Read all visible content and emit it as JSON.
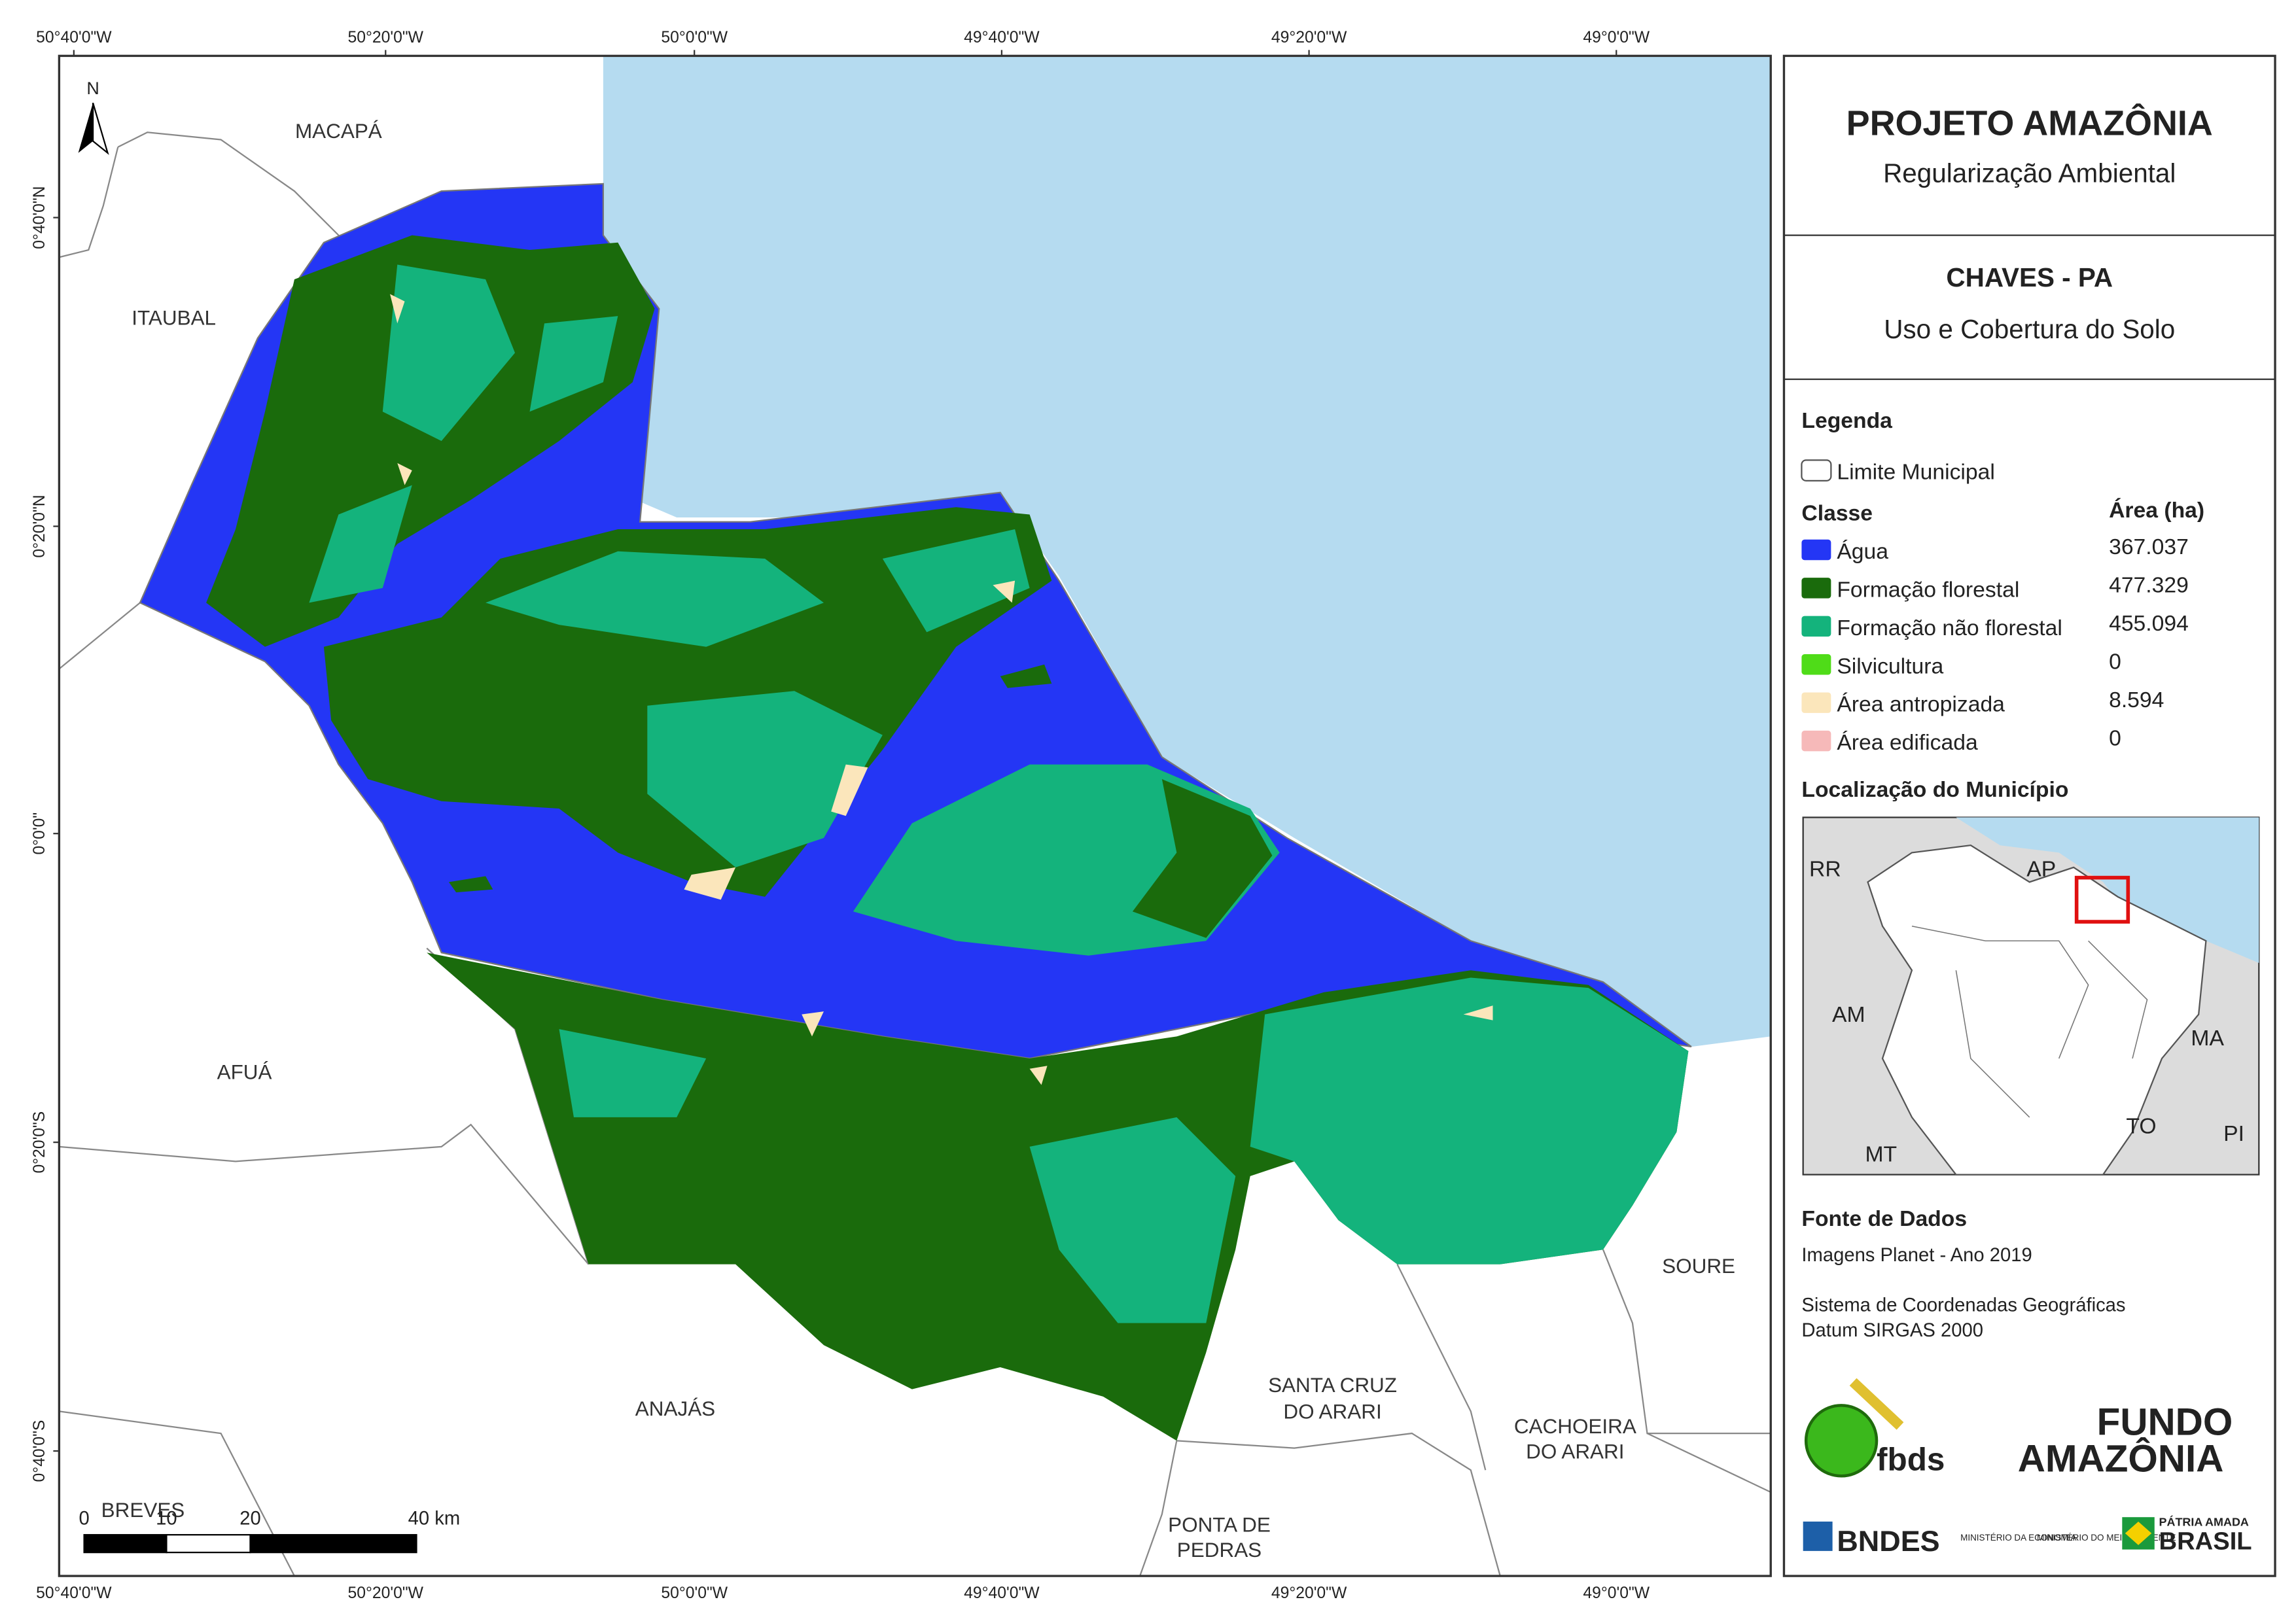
{
  "map": {
    "coords_top": [
      "50°40'0\"W",
      "50°20'0\"W",
      "50°0'0\"W",
      "49°40'0\"W",
      "49°20'0\"W",
      "49°0'0\"W"
    ],
    "coords_left": [
      "0°40'0\"N",
      "0°20'0\"N",
      "0°0'0\"",
      "0°20'0\"S",
      "0°40'0\"S"
    ],
    "places": [
      [
        "MACAPÁ"
      ],
      [
        "ITAUBAL"
      ],
      [
        "AFUÁ"
      ],
      [
        "ANAJÁS"
      ],
      [
        "BREVES"
      ],
      [
        "SOURE"
      ],
      [
        "SANTA CRUZ",
        "DO ARARI"
      ],
      [
        "CACHOEIRA",
        "DO ARARI"
      ],
      [
        "PONTA DE",
        "PEDRAS"
      ]
    ],
    "north": "N",
    "scale": [
      "0",
      "10",
      "20",
      "40 km"
    ]
  },
  "panel": {
    "title": "PROJETO AMAZÔNIA",
    "subtitle": "Regularização Ambiental",
    "municipality": "CHAVES - PA",
    "theme": "Uso e Cobertura do Solo",
    "legend": {
      "heading": "Legenda",
      "boundary": "Limite Municipal",
      "class_header": "Classe",
      "area_header": "Área (ha)",
      "classes": [
        {
          "name": "Água",
          "color": "#2436f5",
          "area": "367.037"
        },
        {
          "name": "Formação florestal",
          "color": "#1a6b0c",
          "area": "477.329"
        },
        {
          "name": "Formação não florestal",
          "color": "#14b37c",
          "area": "455.094"
        },
        {
          "name": "Silvicultura",
          "color": "#4fdc18",
          "area": "0"
        },
        {
          "name": "Área antropizada",
          "color": "#fbe6bb",
          "area": "8.594"
        },
        {
          "name": "Área edificada",
          "color": "#f6b9b9",
          "area": "0"
        }
      ]
    },
    "locator": {
      "heading": "Localização do Município",
      "labels": [
        "RR",
        "AP",
        "AM",
        "MA",
        "TO",
        "MT",
        "PI"
      ]
    },
    "sources": {
      "heading": "Fonte de Dados",
      "lines": [
        "Imagens Planet - Ano 2019",
        "Sistema de Coordenadas Geográficas",
        "Datum SIRGAS 2000"
      ]
    },
    "logos": [
      "fbds",
      "FUNDO",
      "AMAZÔNIA",
      "BNDES",
      "MINISTÉRIO DA ECONOMIA",
      "MINISTÉRIO DO MEIO AMBIENTE",
      "PÁTRIA AMADA",
      "BRASIL"
    ]
  }
}
